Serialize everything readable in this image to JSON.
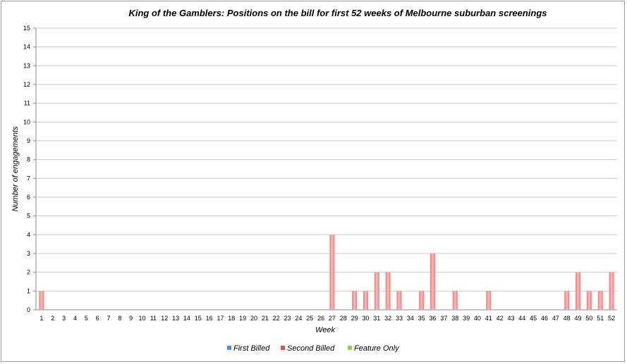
{
  "chart_data": {
    "type": "bar",
    "stacked": true,
    "title": "King of the Gamblers: Positions on the bill for first 52 weeks of Melbourne suburban screenings",
    "xlabel": "Week",
    "ylabel": "Number of engagements",
    "ylim": [
      0,
      15
    ],
    "yticks": [
      0,
      1,
      2,
      3,
      4,
      5,
      6,
      7,
      8,
      9,
      10,
      11,
      12,
      13,
      14,
      15
    ],
    "grid": true,
    "legend_position": "bottom",
    "categories": [
      "1",
      "2",
      "3",
      "4",
      "5",
      "6",
      "7",
      "8",
      "9",
      "10",
      "11",
      "12",
      "13",
      "14",
      "15",
      "16",
      "17",
      "18",
      "19",
      "20",
      "21",
      "22",
      "23",
      "24",
      "25",
      "26",
      "27",
      "28",
      "29",
      "30",
      "31",
      "32",
      "33",
      "34",
      "35",
      "36",
      "37",
      "38",
      "39",
      "40",
      "41",
      "42",
      "43",
      "44",
      "45",
      "46",
      "47",
      "48",
      "49",
      "50",
      "51",
      "52"
    ],
    "series": [
      {
        "name": "First Billed",
        "color": "#4f8fe0",
        "values": [
          0,
          0,
          0,
          0,
          0,
          0,
          0,
          0,
          0,
          0,
          0,
          0,
          0,
          0,
          0,
          0,
          0,
          0,
          0,
          0,
          0,
          0,
          0,
          0,
          0,
          0,
          0,
          0,
          0,
          0,
          0,
          0,
          0,
          0,
          0,
          0,
          0,
          0,
          0,
          0,
          0,
          0,
          0,
          0,
          0,
          0,
          0,
          0,
          0,
          0,
          0,
          0
        ]
      },
      {
        "name": "Second Billed",
        "color": "#e84848",
        "values": [
          1,
          0,
          0,
          0,
          0,
          0,
          0,
          0,
          0,
          0,
          0,
          0,
          0,
          0,
          0,
          0,
          0,
          0,
          0,
          0,
          0,
          0,
          0,
          0,
          0,
          0,
          4,
          0,
          1,
          1,
          2,
          2,
          1,
          0,
          1,
          3,
          0,
          1,
          0,
          0,
          1,
          0,
          0,
          0,
          0,
          0,
          0,
          1,
          2,
          1,
          1,
          2
        ]
      },
      {
        "name": "Feature Only",
        "color": "#8fd13f",
        "values": [
          0,
          0,
          0,
          0,
          0,
          0,
          0,
          0,
          0,
          0,
          0,
          0,
          0,
          0,
          0,
          0,
          0,
          0,
          0,
          0,
          0,
          0,
          0,
          0,
          0,
          0,
          0,
          0,
          0,
          0,
          0,
          0,
          0,
          0,
          0,
          0,
          0,
          0,
          0,
          0,
          0,
          0,
          0,
          0,
          0,
          0,
          0,
          0,
          0,
          0,
          0,
          0
        ]
      }
    ]
  }
}
